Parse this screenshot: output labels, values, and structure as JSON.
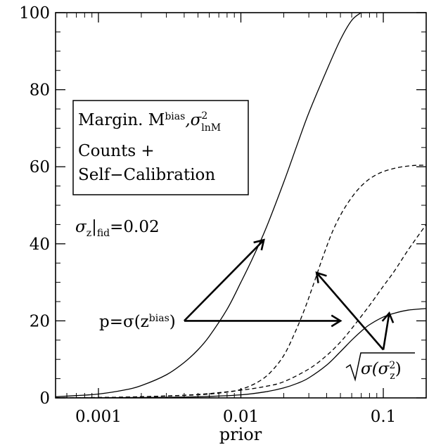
{
  "chart_data": {
    "type": "line",
    "xlabel": "prior",
    "ylabel": "",
    "xscale": "log",
    "xlim": [
      0.0005,
      0.2
    ],
    "ylim": [
      0,
      100
    ],
    "x_ticks": [
      {
        "value": 0.001,
        "label": "0.001"
      },
      {
        "value": 0.01,
        "label": "0.01"
      },
      {
        "value": 0.1,
        "label": "0.1"
      }
    ],
    "y_ticks": [
      {
        "value": 0,
        "label": "0"
      },
      {
        "value": 20,
        "label": "20"
      },
      {
        "value": 40,
        "label": "40"
      },
      {
        "value": 60,
        "label": "60"
      },
      {
        "value": 80,
        "label": "80"
      },
      {
        "value": 100,
        "label": "100"
      }
    ],
    "legend_box": {
      "line1_prefix": "Margin. M",
      "line1_sup1": "bias",
      "line1_mid": ",σ",
      "line1_sup2": "2",
      "line1_sub2": "lnM",
      "line2": "Counts +",
      "line3": "Self−Calibration"
    },
    "fid_label": {
      "prefix": "σ",
      "sub1": "z",
      "mid": "|",
      "sub2": "fid",
      "suffix": "=0.02"
    },
    "annotation_p": {
      "prefix": "p=σ(z",
      "sup": "bias",
      "suffix": ")"
    },
    "annotation_sqrt": {
      "prefix": "σ(σ",
      "sup": "2",
      "sub": "z",
      "suffix": ")"
    },
    "series": [
      {
        "style": "solid",
        "x": [
          0.0005,
          0.0007,
          0.001,
          0.0015,
          0.002,
          0.003,
          0.004,
          0.005,
          0.006,
          0.008,
          0.01,
          0.012,
          0.015,
          0.02,
          0.025,
          0.03,
          0.04,
          0.05,
          0.06,
          0.07,
          0.08
        ],
        "y": [
          0.3,
          0.6,
          1,
          2,
          3.2,
          6,
          9.2,
          12.5,
          16,
          23,
          30,
          36,
          44,
          56,
          66,
          74,
          85,
          93,
          98,
          100,
          101
        ]
      },
      {
        "style": "dashed",
        "x": [
          0.0005,
          0.001,
          0.002,
          0.005,
          0.008,
          0.01,
          0.013,
          0.016,
          0.02,
          0.024,
          0.028,
          0.032,
          0.038,
          0.045,
          0.055,
          0.07,
          0.09,
          0.12,
          0.16,
          0.2
        ],
        "y": [
          0,
          0.1,
          0.3,
          0.8,
          1.5,
          2.2,
          4,
          6.5,
          11,
          17,
          23,
          29,
          37,
          44,
          50,
          55,
          58,
          59.6,
          60.3,
          60.4
        ]
      },
      {
        "style": "dashed",
        "x": [
          0.0005,
          0.001,
          0.002,
          0.005,
          0.01,
          0.015,
          0.02,
          0.03,
          0.04,
          0.05,
          0.06,
          0.08,
          0.1,
          0.12,
          0.15,
          0.2
        ],
        "y": [
          0,
          0.1,
          0.3,
          0.9,
          2,
          3,
          4.2,
          7.5,
          11,
          14.5,
          18,
          24,
          29,
          33,
          38.5,
          45
        ]
      },
      {
        "style": "solid",
        "x": [
          0.0005,
          0.001,
          0.002,
          0.005,
          0.01,
          0.015,
          0.02,
          0.025,
          0.03,
          0.04,
          0.05,
          0.06,
          0.07,
          0.08,
          0.1,
          0.12,
          0.15,
          0.2
        ],
        "y": [
          0,
          0.05,
          0.1,
          0.3,
          0.8,
          1.6,
          2.6,
          3.8,
          5.2,
          8.5,
          12,
          15,
          17.3,
          19,
          21,
          22,
          22.8,
          23.2
        ]
      }
    ]
  }
}
